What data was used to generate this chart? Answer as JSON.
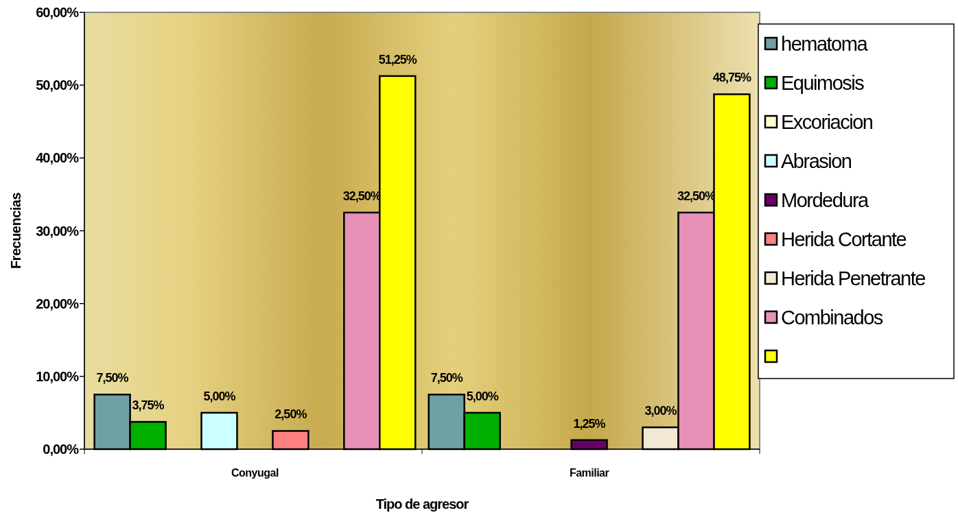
{
  "chart_data": {
    "type": "bar",
    "xlabel": "Tipo de agresor",
    "ylabel": "Frecuencias",
    "categories": [
      "Conyugal",
      "Familiar"
    ],
    "ylim": [
      0,
      60
    ],
    "yticks": [
      {
        "value": 0,
        "label": "0,00%"
      },
      {
        "value": 10,
        "label": "10,00%"
      },
      {
        "value": 20,
        "label": "20,00%"
      },
      {
        "value": 30,
        "label": "30,00%"
      },
      {
        "value": 40,
        "label": "40,00%"
      },
      {
        "value": 50,
        "label": "50,00%"
      },
      {
        "value": 60,
        "label": "60,00%"
      }
    ],
    "legend": "right",
    "grid": false,
    "series": [
      {
        "name": "hematoma",
        "color": "#6fa0a4",
        "values": [
          7.5,
          7.5
        ],
        "value_labels": [
          "7,50%",
          "7,50%"
        ]
      },
      {
        "name": "Equimosis",
        "color": "#00b000",
        "values": [
          3.75,
          5
        ],
        "value_labels": [
          "3,75%",
          "5,00%"
        ]
      },
      {
        "name": "Excoriacion",
        "color": "#ffffcc",
        "values": [
          null,
          null
        ],
        "value_labels": [
          null,
          null
        ]
      },
      {
        "name": "Abrasion",
        "color": "#ccffff",
        "values": [
          5,
          null
        ],
        "value_labels": [
          "5,00%",
          null
        ]
      },
      {
        "name": "Mordedura",
        "color": "#660066",
        "values": [
          null,
          1.25
        ],
        "value_labels": [
          null,
          "1,25%"
        ]
      },
      {
        "name": "Herida Cortante",
        "color": "#ff8080",
        "values": [
          2.5,
          null
        ],
        "value_labels": [
          "2,50%",
          null
        ]
      },
      {
        "name": "Herida Penetrante",
        "color": "#f2e8d4",
        "values": [
          null,
          3
        ],
        "value_labels": [
          null,
          "3,00%"
        ]
      },
      {
        "name": "Combinados",
        "color": "#e890b8",
        "values": [
          32.5,
          32.5
        ],
        "value_labels": [
          "32,50%",
          "32,50%"
        ]
      },
      {
        "color": "#ffff00",
        "values": [
          51.25,
          48.75
        ],
        "value_labels": [
          "51,25%",
          "48,75%"
        ]
      }
    ]
  }
}
